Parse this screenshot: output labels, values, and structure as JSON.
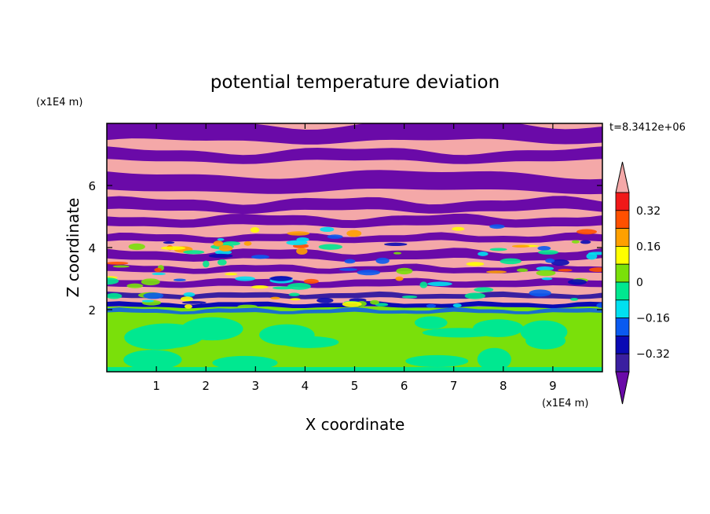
{
  "chart_data": {
    "type": "heatmap",
    "title": "potential temperature deviation",
    "xlabel": "X coordinate",
    "ylabel": "Z coordinate",
    "x_unit": "(x1E4 m)",
    "z_unit": "(x1E4 m)",
    "time_label": "t=8.3412e+06",
    "xlim": [
      0,
      10
    ],
    "ylim": [
      0,
      8
    ],
    "x_ticks": [
      "1",
      "2",
      "3",
      "4",
      "5",
      "6",
      "7",
      "8",
      "9"
    ],
    "y_ticks": [
      "2",
      "4",
      "6"
    ],
    "colorbar": {
      "levels": [
        -0.4,
        -0.32,
        -0.24,
        -0.16,
        -0.08,
        0,
        0.08,
        0.16,
        0.24,
        0.32,
        0.4
      ],
      "labels": [
        "0.32",
        "0.16",
        "0",
        "−0.16",
        "−0.32"
      ],
      "colors": [
        "#6a0aa8",
        "#3a1fa0",
        "#0a0ab4",
        "#0a5af0",
        "#00e0f0",
        "#00e890",
        "#7ae00a",
        "#ffff00",
        "#ffa000",
        "#ff5000",
        "#f01818",
        "#f4a8a8"
      ]
    }
  }
}
